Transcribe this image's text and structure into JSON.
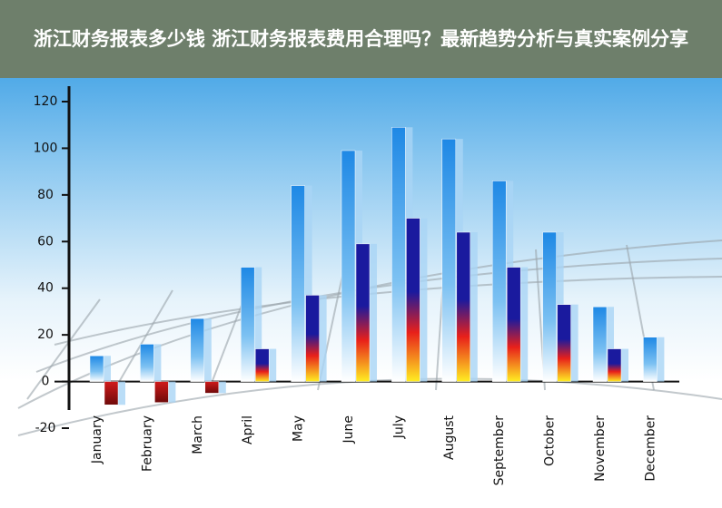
{
  "chart_data": {
    "type": "bar",
    "title": "浙江财务报表多少钱 浙江财务报表费用合理吗？最新趋势分析与真实案例分享",
    "categories": [
      "January",
      "February",
      "March",
      "April",
      "May",
      "June",
      "July",
      "August",
      "September",
      "October",
      "November",
      "December"
    ],
    "series": [
      {
        "color": "#1e88e5",
        "values": [
          11,
          16,
          27,
          49,
          84,
          99,
          109,
          104,
          86,
          64,
          32,
          19
        ]
      },
      {
        "color": "#1a1a9e",
        "values": [
          -10,
          -9,
          -5,
          14,
          37,
          59,
          70,
          64,
          49,
          33,
          14,
          null
        ]
      }
    ],
    "ylim": [
      -20,
      120
    ],
    "yticks": [
      -20,
      0,
      20,
      40,
      60,
      80,
      100,
      120
    ]
  }
}
